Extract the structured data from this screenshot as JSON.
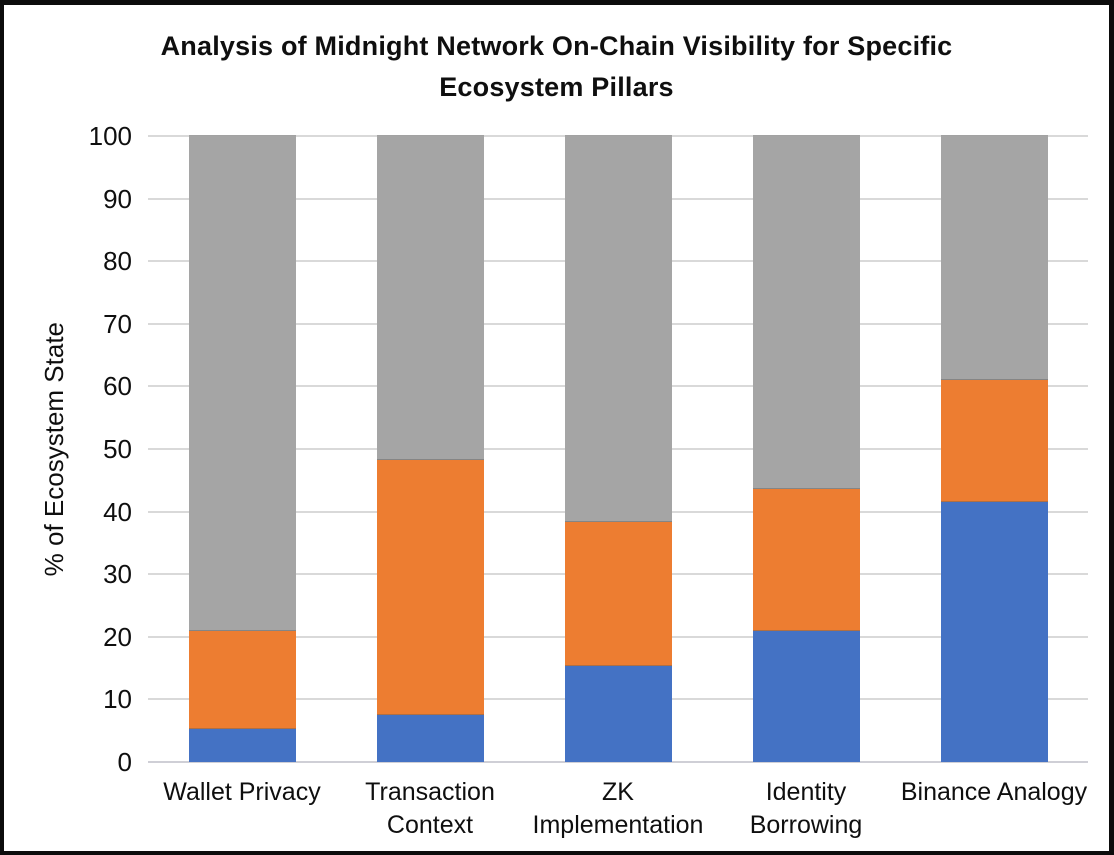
{
  "title": {
    "line1": "Analysis of Midnight Network On-Chain Visibility for Specific",
    "line2": "Ecosystem Pillars"
  },
  "y_axis": {
    "label": "% of Ecosystem State",
    "ticks": [
      100,
      90,
      80,
      70,
      60,
      50,
      40,
      30,
      20,
      10,
      0
    ],
    "min": 0,
    "max": 100
  },
  "chart_data": {
    "type": "bar",
    "stacked": true,
    "title": "Analysis of Midnight Network On-Chain Visibility for Specific Ecosystem Pillars",
    "xlabel": "",
    "ylabel": "% of Ecosystem State",
    "ylim": [
      0,
      100
    ],
    "grid": true,
    "gridline_step": 10,
    "legend": "none",
    "categories": [
      "Wallet Privacy",
      "Transaction Context",
      "ZK Implementation",
      "Identity Borrowing",
      "Binance Analogy"
    ],
    "series": [
      {
        "name": "blue-bottom-segment",
        "color": "#4472C4",
        "values": [
          5.2,
          7.5,
          15.4,
          21.0,
          41.5
        ]
      },
      {
        "name": "orange-middle-segment",
        "color": "#ED7D31",
        "values": [
          15.8,
          40.7,
          23.0,
          22.6,
          19.6
        ]
      },
      {
        "name": "gray-top-segment",
        "color": "#A5A5A5",
        "values": [
          79.0,
          51.8,
          61.6,
          56.4,
          38.9
        ]
      }
    ],
    "cumulative_tops": {
      "blue": [
        5.2,
        7.5,
        15.4,
        21.0,
        41.5
      ],
      "orange": [
        21.0,
        48.2,
        38.4,
        43.6,
        61.1
      ],
      "gray": [
        100,
        100,
        100,
        100,
        100
      ]
    },
    "colors": {
      "blue": "#4472C4",
      "orange": "#ED7D31",
      "gray": "#A5A5A5",
      "gridline": "#D9D9D9",
      "text": "#0F0F0F",
      "frame_border": "#0C0C0C",
      "background": "#FFFFFF"
    }
  }
}
